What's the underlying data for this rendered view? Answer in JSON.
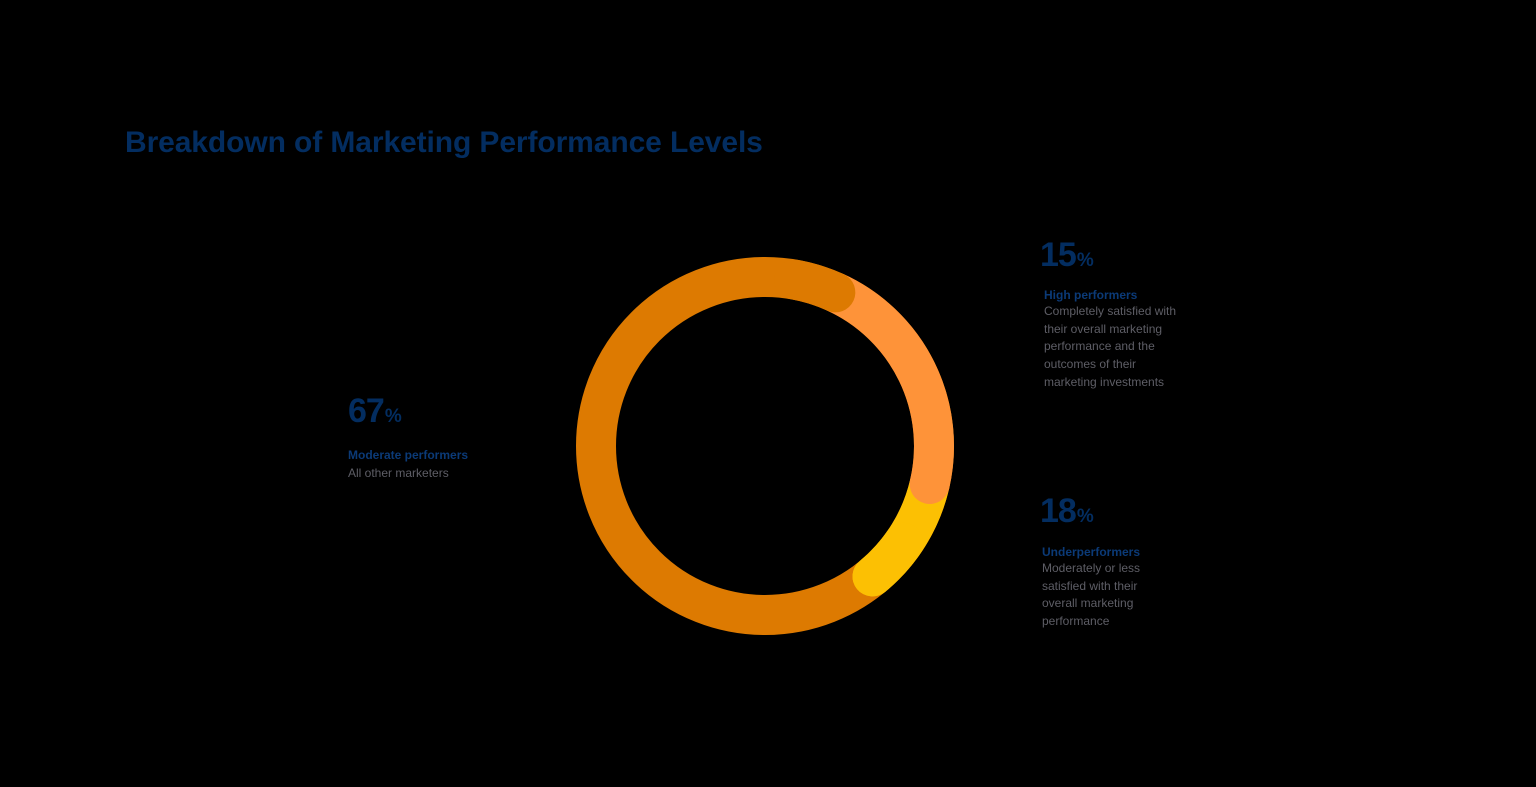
{
  "title": "Breakdown of Marketing Performance Levels",
  "colors": {
    "title": "#032D60",
    "moderate": "#DD7A01",
    "high": "#FE9339",
    "under": "#FCC003",
    "description_text": "#5E5E66",
    "background": "#000000"
  },
  "callouts": {
    "moderate": {
      "value": "67",
      "unit": "%",
      "label": "Moderate performers",
      "description": [
        "All other marketers"
      ]
    },
    "high": {
      "value": "15",
      "unit": "%",
      "label": "High performers",
      "description": [
        "Completely satisfied with",
        "their overall marketing",
        "performance and the",
        "outcomes of their",
        "marketing investments"
      ]
    },
    "under": {
      "value": "18",
      "unit": "%",
      "label": "Underperformers",
      "description": [
        "Moderately or less",
        "satisfied with their",
        "overall marketing",
        "performance"
      ]
    }
  },
  "chart_data": {
    "type": "pie",
    "variant": "donut",
    "title": "Breakdown of Marketing Performance Levels",
    "categories": [
      "Moderate performers",
      "High performers",
      "Underperformers"
    ],
    "values": [
      67,
      15,
      18
    ],
    "unit": "%",
    "colors": [
      "#DD7A01",
      "#FE9339",
      "#FCC003"
    ],
    "descriptions": [
      "All other marketers",
      "Completely satisfied with their overall marketing performance and the outcomes of their marketing investments",
      "Moderately or less satisfied with their overall marketing performance"
    ],
    "legend": "callout labels (left for Moderate, right for High and Under)",
    "grid": false
  }
}
